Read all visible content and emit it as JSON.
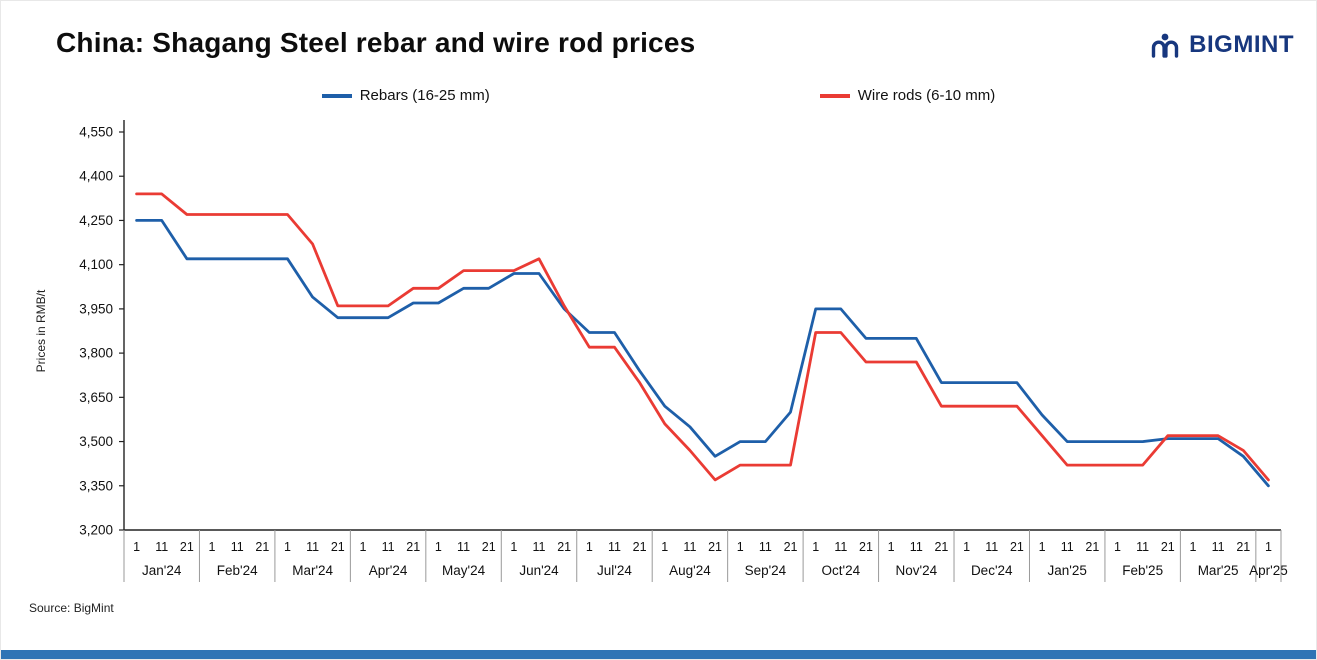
{
  "header": {
    "title": "China: Shagang Steel rebar and wire rod prices",
    "logo_text": "BIGMINT",
    "logo_color": "#17377e"
  },
  "legend": [
    {
      "label": "Rebars (16-25 mm)",
      "color": "#1e5fa9"
    },
    {
      "label": "Wire rods (6-10 mm)",
      "color": "#ea3b34"
    }
  ],
  "footer": {
    "source": "Source: BigMint",
    "accent_bar_color": "#2e74b5"
  },
  "chart_data": {
    "type": "line",
    "title": "China: Shagang Steel rebar and wire rod prices",
    "xlabel": "",
    "ylabel": "Prices in RMB/t",
    "ylim": [
      3200,
      4550
    ],
    "ytick_step": 150,
    "grid": false,
    "legend_position": "top",
    "months": [
      {
        "label": "Jan'24",
        "ticks": [
          "1",
          "11",
          "21"
        ]
      },
      {
        "label": "Feb'24",
        "ticks": [
          "1",
          "11",
          "21"
        ]
      },
      {
        "label": "Mar'24",
        "ticks": [
          "1",
          "11",
          "21"
        ]
      },
      {
        "label": "Apr'24",
        "ticks": [
          "1",
          "11",
          "21"
        ]
      },
      {
        "label": "May'24",
        "ticks": [
          "1",
          "11",
          "21"
        ]
      },
      {
        "label": "Jun'24",
        "ticks": [
          "1",
          "11",
          "21"
        ]
      },
      {
        "label": "Jul'24",
        "ticks": [
          "1",
          "11",
          "21"
        ]
      },
      {
        "label": "Aug'24",
        "ticks": [
          "1",
          "11",
          "21"
        ]
      },
      {
        "label": "Sep'24",
        "ticks": [
          "1",
          "11",
          "21"
        ]
      },
      {
        "label": "Oct'24",
        "ticks": [
          "1",
          "11",
          "21"
        ]
      },
      {
        "label": "Nov'24",
        "ticks": [
          "1",
          "11",
          "21"
        ]
      },
      {
        "label": "Dec'24",
        "ticks": [
          "1",
          "11",
          "21"
        ]
      },
      {
        "label": "Jan'25",
        "ticks": [
          "1",
          "11",
          "21"
        ]
      },
      {
        "label": "Feb'25",
        "ticks": [
          "1",
          "11",
          "21"
        ]
      },
      {
        "label": "Mar'25",
        "ticks": [
          "1",
          "11",
          "21"
        ]
      },
      {
        "label": "Apr'25",
        "ticks": [
          "1"
        ]
      }
    ],
    "series": [
      {
        "name": "Rebars (16-25 mm)",
        "color": "#1e5fa9",
        "values": [
          4250,
          4250,
          4120,
          4120,
          4120,
          4120,
          4120,
          3990,
          3920,
          3920,
          3920,
          3970,
          3970,
          4020,
          4020,
          4070,
          4070,
          3950,
          3870,
          3870,
          3740,
          3620,
          3550,
          3450,
          3500,
          3500,
          3600,
          3950,
          3950,
          3850,
          3850,
          3850,
          3700,
          3700,
          3700,
          3700,
          3590,
          3500,
          3500,
          3500,
          3500,
          3510,
          3510,
          3510,
          3450,
          3350
        ]
      },
      {
        "name": "Wire rods (6-10 mm)",
        "color": "#ea3b34",
        "values": [
          4340,
          4340,
          4270,
          4270,
          4270,
          4270,
          4270,
          4170,
          3960,
          3960,
          3960,
          4020,
          4020,
          4080,
          4080,
          4080,
          4120,
          3960,
          3820,
          3820,
          3700,
          3560,
          3470,
          3370,
          3420,
          3420,
          3420,
          3870,
          3870,
          3770,
          3770,
          3770,
          3620,
          3620,
          3620,
          3620,
          3520,
          3420,
          3420,
          3420,
          3420,
          3520,
          3520,
          3520,
          3470,
          3370
        ]
      }
    ]
  }
}
